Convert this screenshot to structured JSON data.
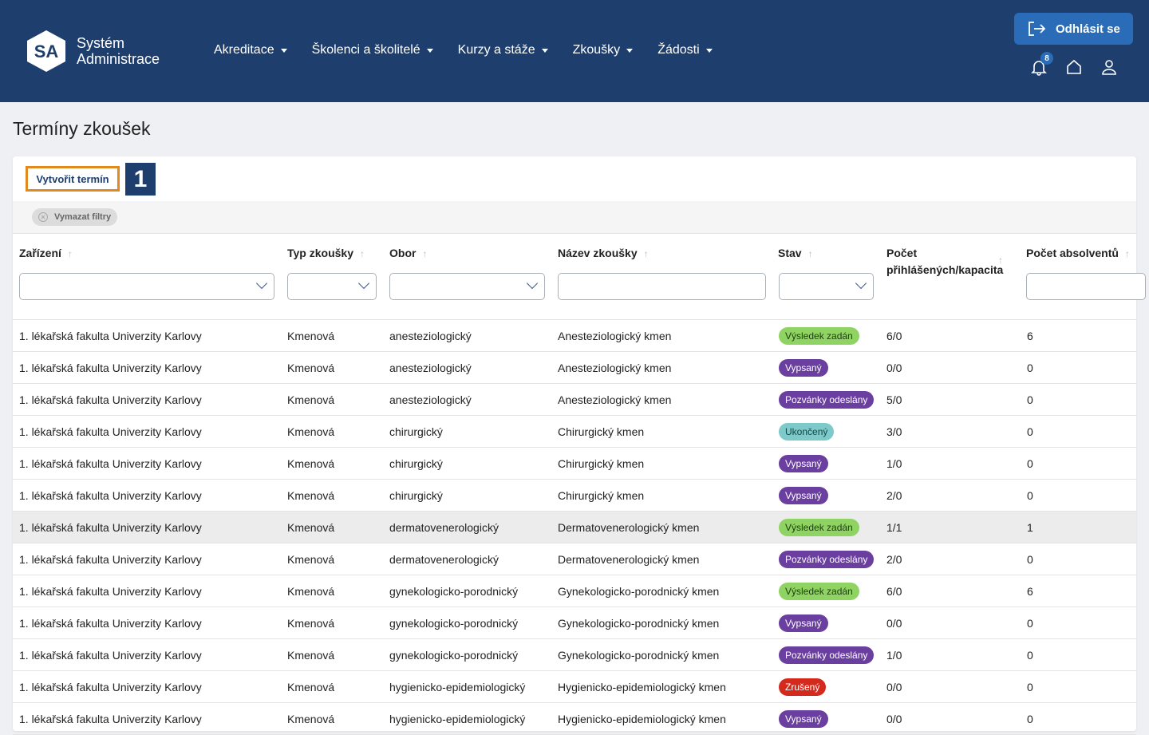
{
  "header": {
    "logo_text": "SA",
    "brand_line1": "Systém",
    "brand_line2": "Administrace",
    "nav": [
      {
        "label": "Akreditace"
      },
      {
        "label": "Školenci a školitelé"
      },
      {
        "label": "Kurzy a stáže"
      },
      {
        "label": "Zkoušky"
      },
      {
        "label": "Žádosti"
      }
    ],
    "logout_label": "Odhlásit se",
    "notifications_count": "8",
    "icons": [
      "logout-icon",
      "bell-icon",
      "home-icon",
      "user-icon"
    ]
  },
  "page": {
    "title": "Termíny zkoušek",
    "create_label": "Vytvořit termín",
    "step_marker": "1",
    "clear_filters_label": "Vymazat filtry"
  },
  "table": {
    "columns": [
      {
        "label": "Zařízení"
      },
      {
        "label": "Typ zkoušky"
      },
      {
        "label": "Obor"
      },
      {
        "label": "Název zkoušky"
      },
      {
        "label": "Stav"
      },
      {
        "label": "Počet přihlášených/kapacita"
      },
      {
        "label": "Počet absolventů"
      }
    ],
    "status_colors": {
      "Výsledek zadán": "#8fd462",
      "Vypsaný": "#6a3fa0",
      "Pozvánky odeslány": "#6a3fa0",
      "Ukončený": "#7ec9c9",
      "Zrušený": "#d42a1e"
    },
    "rows": [
      {
        "facility": "1. lékařská fakulta Univerzity Karlovy",
        "type": "Kmenová",
        "field": "anesteziologický",
        "name": "Anesteziologický kmen",
        "status": "Výsledek zadán",
        "registered": "6/0",
        "graduates": "6"
      },
      {
        "facility": "1. lékařská fakulta Univerzity Karlovy",
        "type": "Kmenová",
        "field": "anesteziologický",
        "name": "Anesteziologický kmen",
        "status": "Vypsaný",
        "registered": "0/0",
        "graduates": "0"
      },
      {
        "facility": "1. lékařská fakulta Univerzity Karlovy",
        "type": "Kmenová",
        "field": "anesteziologický",
        "name": "Anesteziologický kmen",
        "status": "Pozvánky odeslány",
        "registered": "5/0",
        "graduates": "0"
      },
      {
        "facility": "1. lékařská fakulta Univerzity Karlovy",
        "type": "Kmenová",
        "field": "chirurgický",
        "name": "Chirurgický kmen",
        "status": "Ukončený",
        "registered": "3/0",
        "graduates": "0"
      },
      {
        "facility": "1. lékařská fakulta Univerzity Karlovy",
        "type": "Kmenová",
        "field": "chirurgický",
        "name": "Chirurgický kmen",
        "status": "Vypsaný",
        "registered": "1/0",
        "graduates": "0"
      },
      {
        "facility": "1. lékařská fakulta Univerzity Karlovy",
        "type": "Kmenová",
        "field": "chirurgický",
        "name": "Chirurgický kmen",
        "status": "Vypsaný",
        "registered": "2/0",
        "graduates": "0"
      },
      {
        "facility": "1. lékařská fakulta Univerzity Karlovy",
        "type": "Kmenová",
        "field": "dermatovenerologický",
        "name": "Dermatovenerologický kmen",
        "status": "Výsledek zadán",
        "registered": "1/1",
        "graduates": "1",
        "highlight": true
      },
      {
        "facility": "1. lékařská fakulta Univerzity Karlovy",
        "type": "Kmenová",
        "field": "dermatovenerologický",
        "name": "Dermatovenerologický kmen",
        "status": "Pozvánky odeslány",
        "registered": "2/0",
        "graduates": "0"
      },
      {
        "facility": "1. lékařská fakulta Univerzity Karlovy",
        "type": "Kmenová",
        "field": "gynekologicko-porodnický",
        "name": "Gynekologicko-porodnický kmen",
        "status": "Výsledek zadán",
        "registered": "6/0",
        "graduates": "6"
      },
      {
        "facility": "1. lékařská fakulta Univerzity Karlovy",
        "type": "Kmenová",
        "field": "gynekologicko-porodnický",
        "name": "Gynekologicko-porodnický kmen",
        "status": "Vypsaný",
        "registered": "0/0",
        "graduates": "0"
      },
      {
        "facility": "1. lékařská fakulta Univerzity Karlovy",
        "type": "Kmenová",
        "field": "gynekologicko-porodnický",
        "name": "Gynekologicko-porodnický kmen",
        "status": "Pozvánky odeslány",
        "registered": "1/0",
        "graduates": "0"
      },
      {
        "facility": "1. lékařská fakulta Univerzity Karlovy",
        "type": "Kmenová",
        "field": "hygienicko-epidemiologický",
        "name": "Hygienicko-epidemiologický kmen",
        "status": "Zrušený",
        "registered": "0/0",
        "graduates": "0"
      },
      {
        "facility": "1. lékařská fakulta Univerzity Karlovy",
        "type": "Kmenová",
        "field": "hygienicko-epidemiologický",
        "name": "Hygienicko-epidemiologický kmen",
        "status": "Vypsaný",
        "registered": "0/0",
        "graduates": "0"
      }
    ]
  }
}
